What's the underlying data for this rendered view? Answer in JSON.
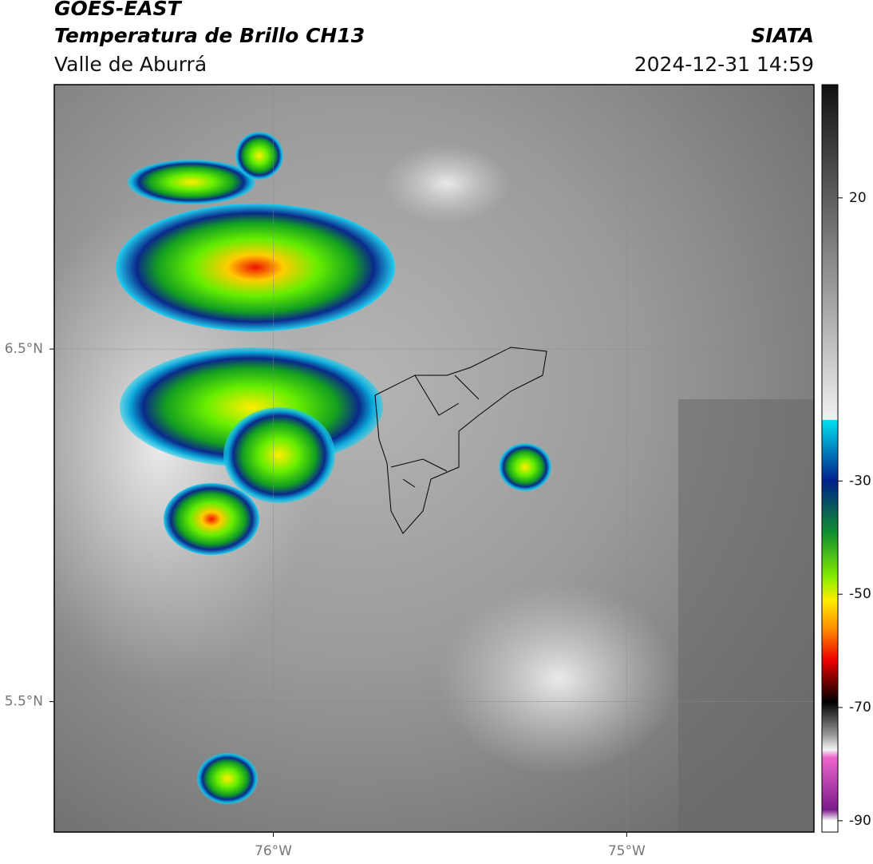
{
  "header": {
    "title": "GOES-EAST",
    "subtitle": "Temperatura de Brillo CH13",
    "region": "Valle de Aburrá",
    "source": "SIATA",
    "timestamp": "2024-12-31 14:59"
  },
  "map": {
    "xlim": [
      -76.62,
      -74.47
    ],
    "ylim": [
      5.13,
      7.25
    ],
    "xticks": [
      {
        "value": -76,
        "label": "76°W"
      },
      {
        "value": -75,
        "label": "75°W"
      }
    ],
    "yticks": [
      {
        "value": 6.5,
        "label": "6.5°N"
      },
      {
        "value": 5.5,
        "label": "5.5°N"
      }
    ]
  },
  "colorbar": {
    "lim": [
      -92,
      40
    ],
    "ticks": [
      20,
      -30,
      -50,
      -70,
      -90
    ]
  }
}
